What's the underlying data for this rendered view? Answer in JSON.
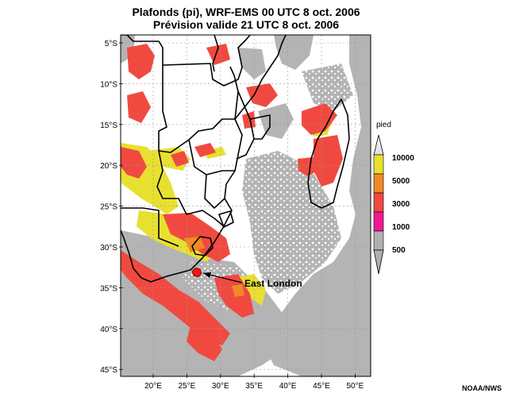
{
  "title_line1": "Plafonds (pi), WRF-EMS 00 UTC 8 oct. 2006",
  "title_line2": "Prévision valide 21 UTC 8 oct. 2006",
  "lat_labels": [
    "5°S",
    "10°S",
    "15°S",
    "20°S",
    "25°S",
    "30°S",
    "35°S",
    "40°S",
    "45°S"
  ],
  "lon_labels": [
    "20°E",
    "25°E",
    "30°E",
    "35°E",
    "40°E",
    "45°E",
    "50°E"
  ],
  "legend": {
    "unit": "pied",
    "levels": [
      "10000",
      "5000",
      "3000",
      "1000",
      "500"
    ],
    "colors": [
      "#e8e030",
      "#f08a28",
      "#f04a40",
      "#f01a90",
      "#b0b0b0"
    ]
  },
  "annotation": {
    "label": "East London",
    "marker_color": "#ff1010"
  },
  "colors": {
    "grey_cloud": "#b4b4b4",
    "yellow": "#e8e030",
    "red": "#f04a40",
    "orange": "#f08a28"
  },
  "credit": "NOAA/NWS"
}
